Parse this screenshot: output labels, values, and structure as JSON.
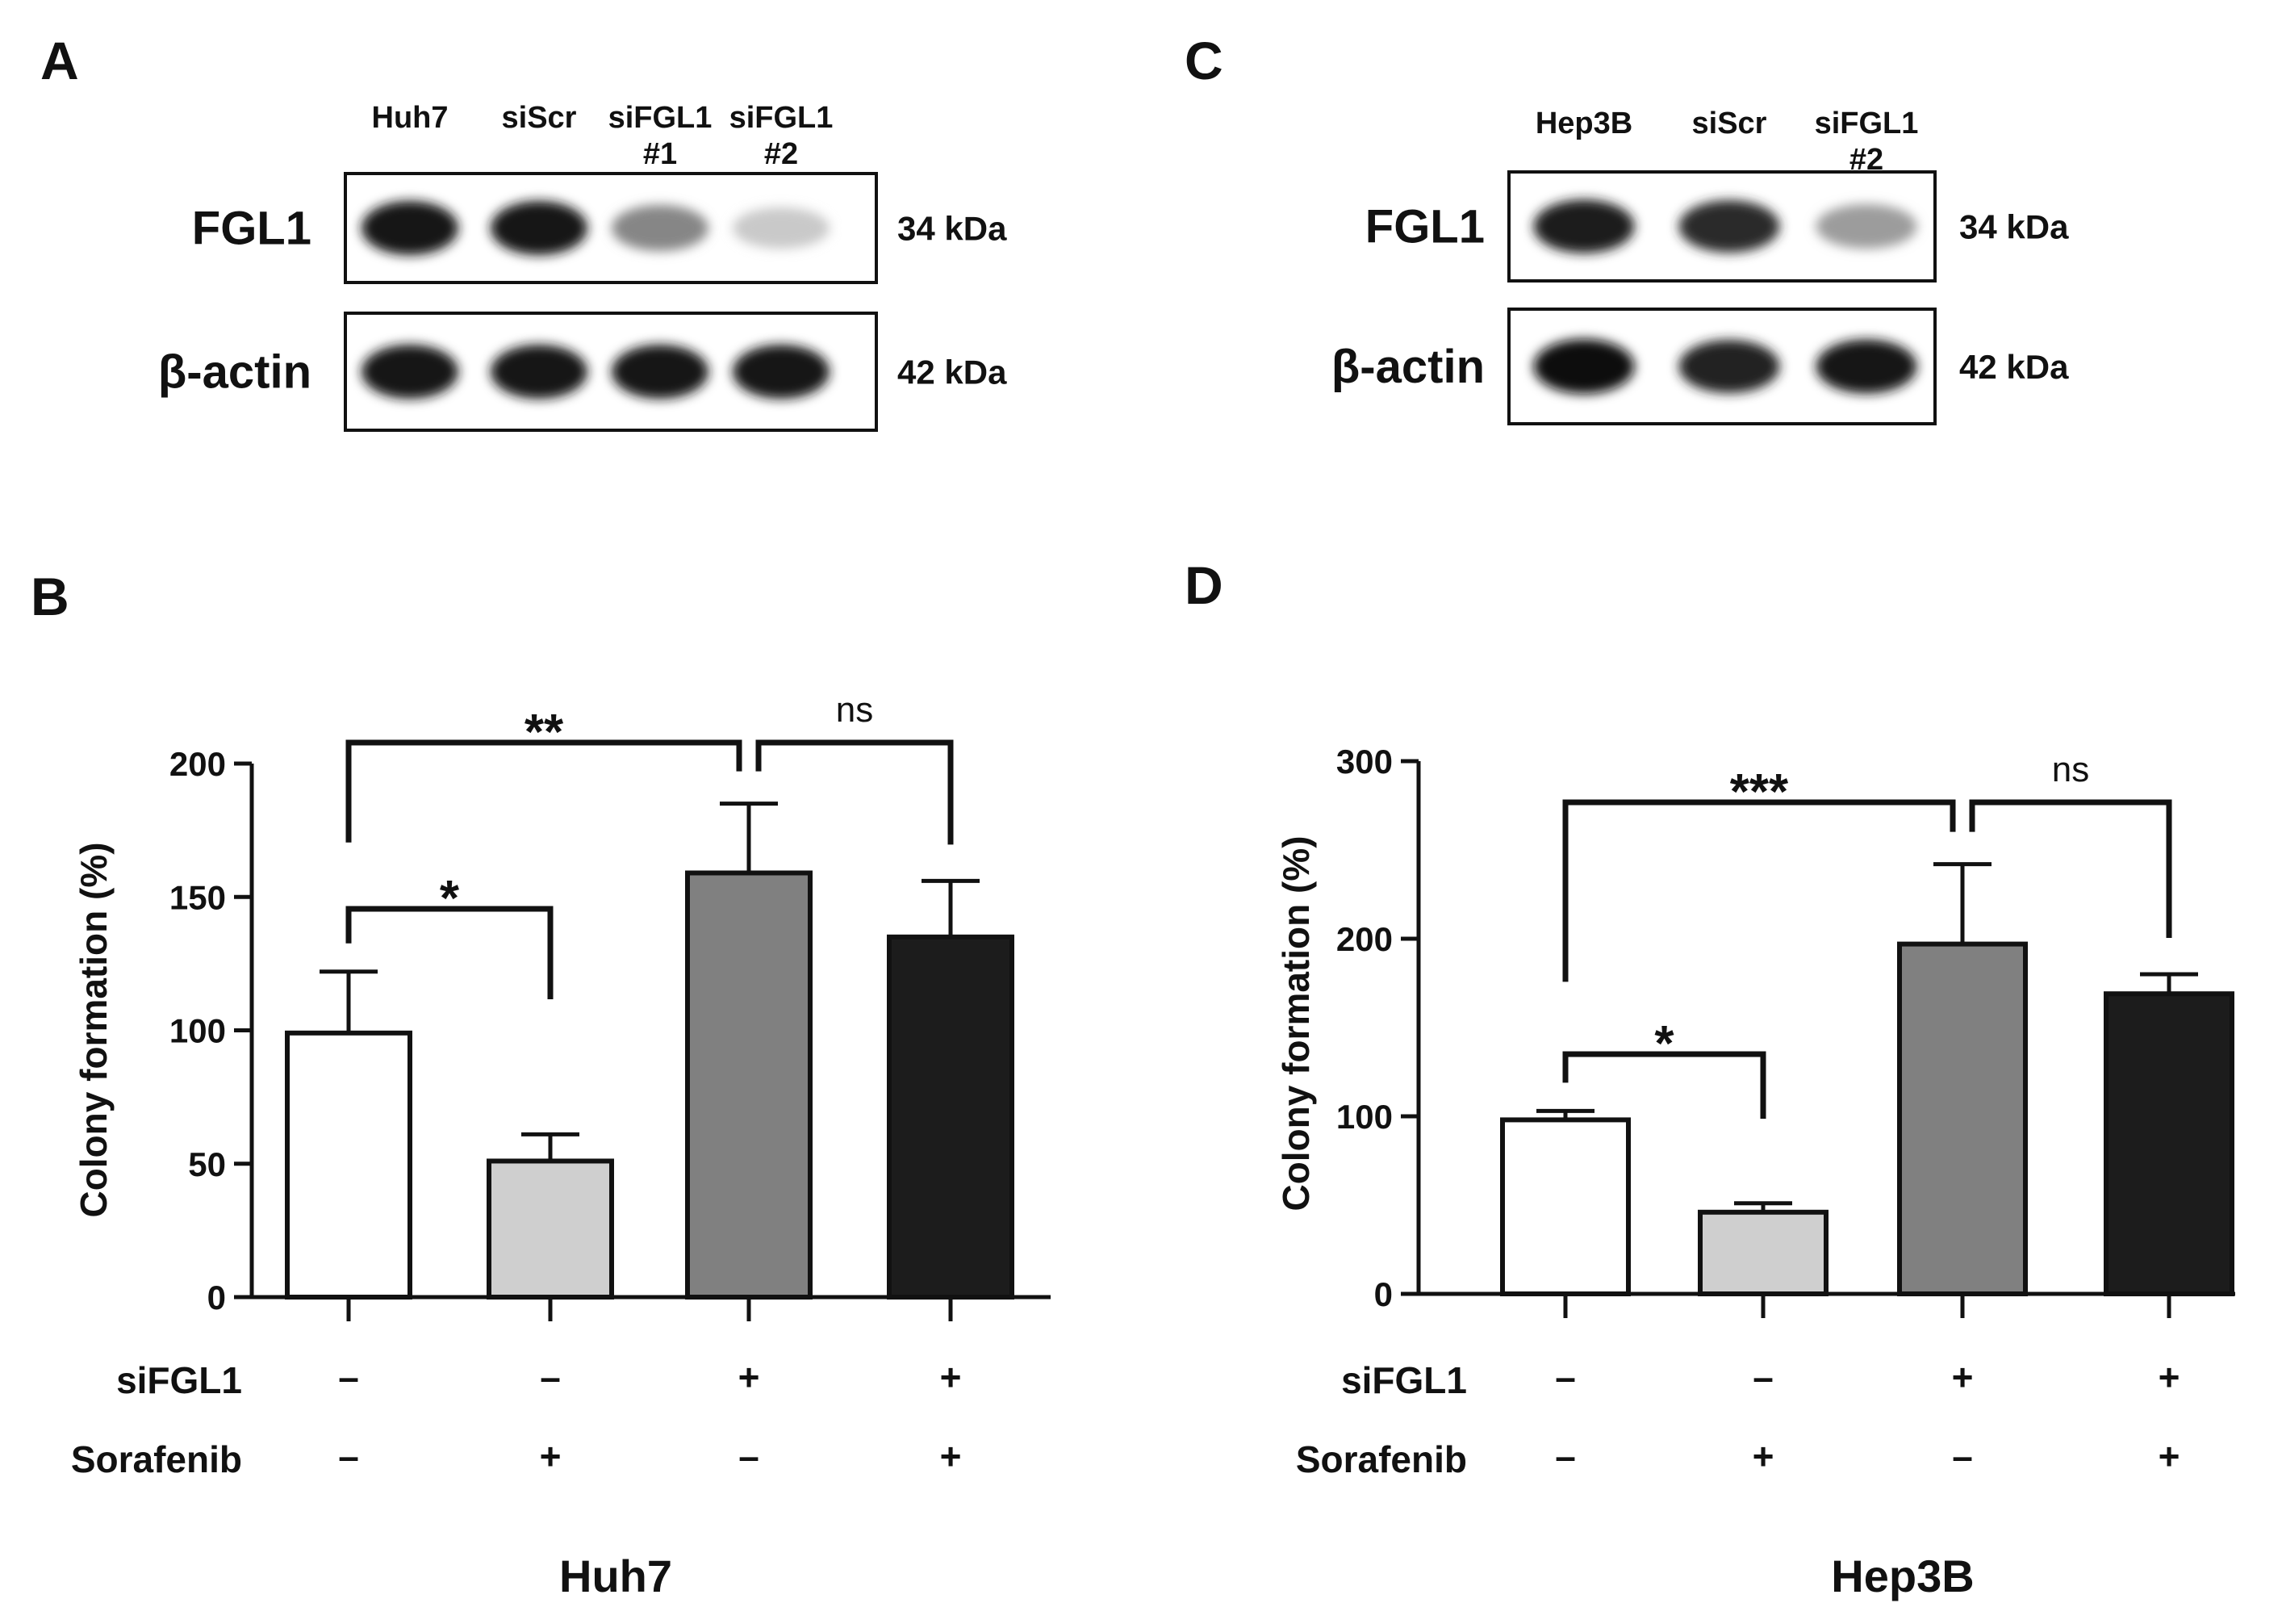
{
  "panels": {
    "A": {
      "letter": "A",
      "lanes": [
        {
          "line1": "Huh7",
          "line2": ""
        },
        {
          "line1": "siScr",
          "line2": ""
        },
        {
          "line1": "siFGL1",
          "line2": "#1"
        },
        {
          "line1": "siFGL1",
          "line2": "#2"
        }
      ],
      "blots": [
        {
          "name": "FGL1",
          "size": "34 kDa",
          "intensity": [
            0.95,
            0.95,
            0.45,
            0.15
          ]
        },
        {
          "name": "β-actin",
          "size": "42 kDa",
          "intensity": [
            0.95,
            0.95,
            0.95,
            0.95
          ]
        }
      ]
    },
    "C": {
      "letter": "C",
      "lanes": [
        {
          "line1": "Hep3B",
          "line2": ""
        },
        {
          "line1": "siScr",
          "line2": ""
        },
        {
          "line1": "siFGL1",
          "line2": "#2"
        }
      ],
      "blots": [
        {
          "name": "FGL1",
          "size": "34 kDa",
          "intensity": [
            0.92,
            0.85,
            0.35
          ]
        },
        {
          "name": "β-actin",
          "size": "42 kDa",
          "intensity": [
            1.0,
            0.9,
            0.95
          ]
        }
      ]
    }
  },
  "treatment_labels": {
    "sifgl1": "siFGL1",
    "sorafenib": "Sorafenib"
  },
  "chart_data": [
    {
      "panel": "B",
      "type": "bar",
      "title": "Huh7",
      "ylabel": "Colony formation (%)",
      "ylim": [
        0,
        200
      ],
      "yticks": [
        0,
        50,
        100,
        150,
        200
      ],
      "categories": [
        "siFGL1 − / Sorafenib −",
        "siFGL1 − / Sorafenib +",
        "siFGL1 + / Sorafenib −",
        "siFGL1 + / Sorafenib +"
      ],
      "values": [
        99,
        51,
        159,
        135
      ],
      "errors": [
        23,
        10,
        26,
        21
      ],
      "colors": [
        "#ffffff",
        "#cfcfcf",
        "#808080",
        "#1c1c1c"
      ],
      "sifgl1": [
        "–",
        "–",
        "+",
        "+"
      ],
      "sorafenib": [
        "–",
        "+",
        "–",
        "+"
      ],
      "significance": [
        {
          "from": 0,
          "to": 1,
          "label": "*"
        },
        {
          "from": 0,
          "to": 2,
          "label": "**"
        },
        {
          "from": 2,
          "to": 3,
          "label": "ns"
        }
      ]
    },
    {
      "panel": "D",
      "type": "bar",
      "title": "Hep3B",
      "ylabel": "Colony formation (%)",
      "ylim": [
        0,
        300
      ],
      "yticks": [
        0,
        100,
        200,
        300
      ],
      "categories": [
        "siFGL1 − / Sorafenib −",
        "siFGL1 − / Sorafenib +",
        "siFGL1 + / Sorafenib −",
        "siFGL1 + / Sorafenib +"
      ],
      "values": [
        98,
        46,
        197,
        169
      ],
      "errors": [
        5,
        5,
        45,
        11
      ],
      "colors": [
        "#ffffff",
        "#cfcfcf",
        "#808080",
        "#1c1c1c"
      ],
      "sifgl1": [
        "–",
        "–",
        "+",
        "+"
      ],
      "sorafenib": [
        "–",
        "+",
        "–",
        "+"
      ],
      "significance": [
        {
          "from": 0,
          "to": 1,
          "label": "*"
        },
        {
          "from": 0,
          "to": 2,
          "label": "***"
        },
        {
          "from": 2,
          "to": 3,
          "label": "ns"
        }
      ]
    }
  ]
}
